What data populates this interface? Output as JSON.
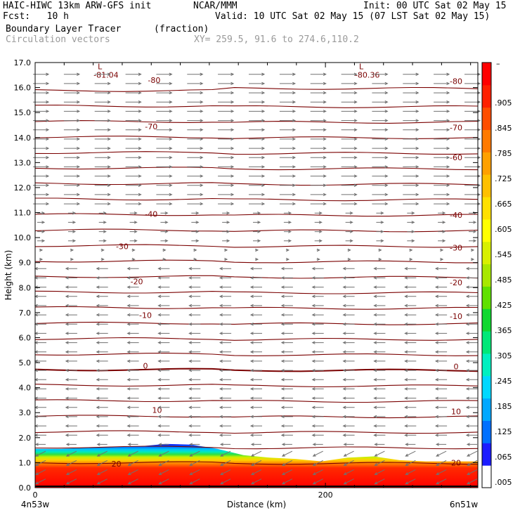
{
  "header": {
    "line1_left": "HAIC-HIWC 13km ARW-GFS init",
    "line1_mid": "NCAR/MMM",
    "line1_right": "Init: 00 UTC Sat 02 May 15",
    "line2_left": "Fcst:   10 h",
    "line2_right": "Valid: 10 UTC Sat 02 May 15 (07 LST Sat 02 May 15)",
    "line3_left": "Boundary Layer Tracer",
    "line3_mid": "(fraction)",
    "line4_left": "Circulation vectors",
    "line4_mid": "XY= 259.5, 91.6 to 274.6,110.2"
  },
  "chart_data": {
    "type": "cross-section",
    "ylabel": "Height (km)",
    "xlabel": "Distance (km)",
    "ylim": [
      0,
      17
    ],
    "xlim": [
      0,
      305
    ],
    "y_ticks": [
      "0.0",
      "1.0",
      "2.0",
      "3.0",
      "4.0",
      "5.0",
      "6.0",
      "7.0",
      "8.0",
      "9.0",
      "10.0",
      "11.0",
      "12.0",
      "13.0",
      "14.0",
      "15.0",
      "16.0",
      "17.0"
    ],
    "x_ticks": [
      {
        "value": 0,
        "label": "0"
      },
      {
        "value": 200,
        "label": "200"
      }
    ],
    "x_endpoints": {
      "left": "4n53w",
      "right": "6n51w"
    },
    "colorbar": {
      "labels": [
        ".005",
        ".065",
        ".125",
        ".185",
        ".245",
        ".305",
        ".365",
        ".425",
        ".485",
        ".545",
        ".605",
        ".665",
        ".725",
        ".785",
        ".845",
        ".905"
      ],
      "top_label": "–",
      "colors": [
        "#ffffff",
        "#1c1cff",
        "#0070ff",
        "#00a8ff",
        "#00d8ff",
        "#00f0c0",
        "#00e878",
        "#10d830",
        "#60e000",
        "#a8e800",
        "#d8f000",
        "#ffff00",
        "#ffe000",
        "#ffc000",
        "#ffa000",
        "#ff7a00",
        "#ff4e00",
        "#ff2000",
        "#ff0000"
      ]
    },
    "temperature_contours": [
      {
        "label": "-80",
        "height": 16.3,
        "label_x": 82
      },
      {
        "label": "-70",
        "height": 14.45,
        "label_x": 80
      },
      {
        "label": "-60",
        "height": 13.2,
        "label_x": 290
      },
      {
        "label": "-40",
        "height": 10.95,
        "label_x": 80
      },
      {
        "label": "-30",
        "height": 9.65,
        "label_x": 60
      },
      {
        "label": "-20",
        "height": 8.25,
        "label_x": 70
      },
      {
        "label": "-10",
        "height": 6.9,
        "label_x": 76
      },
      {
        "label": "0",
        "height": 4.87,
        "label_x": 76
      },
      {
        "label": "10",
        "height": 3.1,
        "label_x": 84
      },
      {
        "label": "20",
        "height": 0.95,
        "label_x": 56
      }
    ],
    "right_contour_labels": [
      {
        "label": "-80",
        "height": 16.25,
        "label_x": 290
      },
      {
        "label": "-70",
        "height": 14.4,
        "label_x": 290
      },
      {
        "label": "-40",
        "height": 10.9,
        "label_x": 290
      },
      {
        "label": "-30",
        "height": 9.6,
        "label_x": 290
      },
      {
        "label": "-20",
        "height": 8.2,
        "label_x": 290
      },
      {
        "label": "-10",
        "height": 6.85,
        "label_x": 290
      },
      {
        "label": "0",
        "height": 4.85,
        "label_x": 290
      },
      {
        "label": "10",
        "height": 3.05,
        "label_x": 290
      },
      {
        "label": "20",
        "height": 1.0,
        "label_x": 290
      }
    ],
    "extrema": [
      {
        "symbol": "L",
        "value": "-81.04",
        "x": 48,
        "height": 16.85
      },
      {
        "symbol": "L",
        "value": "-80.36",
        "x": 228,
        "height": 16.85
      }
    ],
    "bl_top_km": [
      1.55,
      1.55,
      1.6,
      1.62,
      1.65,
      1.75,
      1.72,
      1.55,
      1.3,
      1.2,
      1.15,
      1.05,
      1.2,
      1.25,
      1.1,
      1.05,
      1.05,
      1.05
    ]
  }
}
